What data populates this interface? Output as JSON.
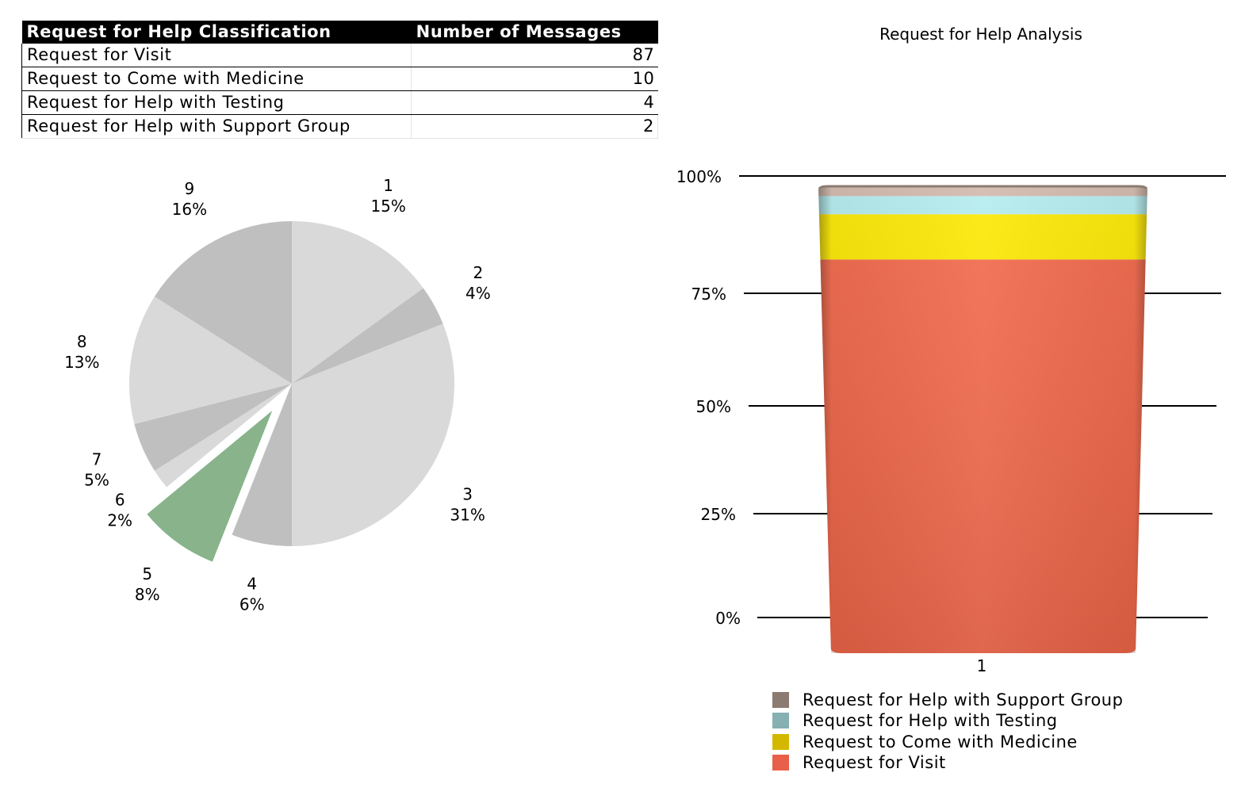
{
  "table": {
    "headers": [
      "Request for Help Classification",
      "Number of Messages"
    ],
    "rows": [
      {
        "label": "Request for Visit",
        "value": "87"
      },
      {
        "label": "Request to Come with Medicine",
        "value": "10"
      },
      {
        "label": "Request for Help with Testing",
        "value": "4"
      },
      {
        "label": "Request for Help with Support Group",
        "value": "2"
      }
    ]
  },
  "chart_data": [
    {
      "type": "pie",
      "title": "",
      "slices": [
        {
          "name": "1",
          "pct_label": "15%",
          "value": 15,
          "color": "#d9d9d9"
        },
        {
          "name": "2",
          "pct_label": "4%",
          "value": 4,
          "color": "#bfbfbf"
        },
        {
          "name": "3",
          "pct_label": "31%",
          "value": 31,
          "color": "#d9d9d9"
        },
        {
          "name": "4",
          "pct_label": "6%",
          "value": 6,
          "color": "#bfbfbf"
        },
        {
          "name": "5",
          "pct_label": "8%",
          "value": 8,
          "color": "#88b38b",
          "exploded": true
        },
        {
          "name": "6",
          "pct_label": "2%",
          "value": 2,
          "color": "#d9d9d9"
        },
        {
          "name": "7",
          "pct_label": "5%",
          "value": 5,
          "color": "#bfbfbf"
        },
        {
          "name": "8",
          "pct_label": "13%",
          "value": 13,
          "color": "#d9d9d9"
        },
        {
          "name": "9",
          "pct_label": "16%",
          "value": 16,
          "color": "#bfbfbf"
        }
      ],
      "start": "top",
      "direction": "clockwise"
    },
    {
      "type": "bar",
      "stacking": "percent",
      "title": "Request for Help Analysis",
      "categories": [
        "1"
      ],
      "yticks": [
        "0%",
        "25%",
        "50%",
        "75%",
        "100%"
      ],
      "ylim": [
        0,
        100
      ],
      "series": [
        {
          "name": "Request for Visit",
          "values": [
            87
          ],
          "color": "#f26749",
          "legend_color": "#e8604a"
        },
        {
          "name": "Request to Come with Medicine",
          "values": [
            10
          ],
          "color": "#fde800",
          "legend_color": "#d4b800"
        },
        {
          "name": "Request for Help with Testing",
          "values": [
            4
          ],
          "color": "#b3ecee",
          "legend_color": "#86b0b1"
        },
        {
          "name": "Request for Help with Support Group",
          "values": [
            2
          ],
          "color": "#d1b8ab",
          "legend_color": "#8c7b70"
        }
      ],
      "legend_position": "bottom",
      "grid": true
    }
  ]
}
